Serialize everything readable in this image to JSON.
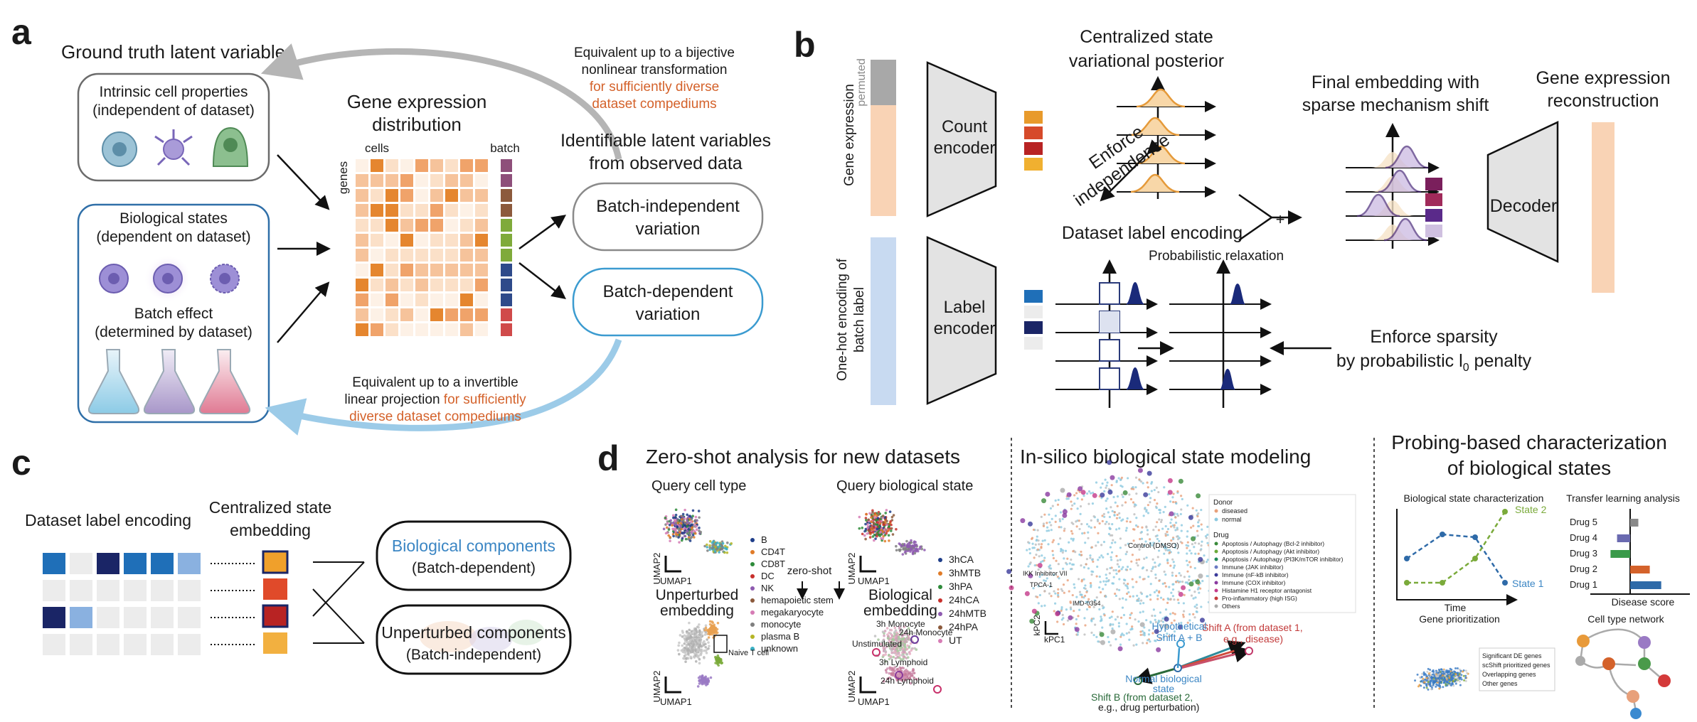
{
  "panel_a": {
    "letter": "a",
    "gt_title": "Ground truth latent variables",
    "intrinsic_line1": "Intrinsic cell properties",
    "intrinsic_line2": "(independent of dataset)",
    "bio_line1": "Biological states",
    "bio_line2": "(dependent on dataset)",
    "batch_line1": "Batch effect",
    "batch_line2": "(determined by dataset)",
    "gene_title1": "Gene expression",
    "gene_title2": "distribution",
    "cells": "cells",
    "genes": "genes",
    "batch": "batch",
    "top_eq1": "Equivalent up to a bijective",
    "top_eq2": "nonlinear transformation",
    "top_eq3": "for sufficiently diverse",
    "top_eq4": "dataset compediums",
    "ident1": "Identifiable latent variables",
    "ident2": "from observed data",
    "bi1": "Batch-independent",
    "bi2": "variation",
    "bd1": "Batch-dependent",
    "bd2": "variation",
    "bot_eq1": "Equivalent up to a invertible",
    "bot_eq2a": "linear projection ",
    "bot_eq2b": "for sufficiently",
    "bot_eq3": "diverse dataset compediums"
  },
  "panel_b": {
    "letter": "b",
    "gene_expr": "Gene expression",
    "permuted": "permuted",
    "onehot1": "One-hot encoding of",
    "onehot2": "batch label",
    "count1": "Count",
    "count2": "encoder",
    "label1": "Label",
    "label2": "encoder",
    "central1": "Centralized state",
    "central2": "variational posterior",
    "enforce1": "Enforce",
    "enforce2": "independence",
    "dataset_label": "Dataset label encoding",
    "prob_relax": "Probabilistic relaxation",
    "plus": "+",
    "final1": "Final embedding with",
    "final2": "sparse mechanism shift",
    "decoder": "Decoder",
    "recon1": "Gene expression",
    "recon2": "reconstruction",
    "sparsity1": "Enforce sparsity",
    "sparsity2": "by probabilistic l",
    "sparsity_sub": "0",
    "sparsity3": " penalty"
  },
  "panel_c": {
    "letter": "c",
    "dataset_label": "Dataset label encoding",
    "central1": "Centralized state",
    "central2": "embedding",
    "bio1": "Biological components",
    "bio2": "(Batch-dependent)",
    "unp1": "Unperturbed components",
    "unp2": "(Batch-independent)"
  },
  "panel_d": {
    "letter": "d",
    "zs_title": "Zero-shot analysis for new datasets",
    "query_cell": "Query cell type",
    "query_bio": "Query biological state",
    "zero_shot": "zero-shot",
    "unpert1": "Unperturbed",
    "unpert2": "embedding",
    "bioemb1": "Biological",
    "bioemb2": "embedding",
    "umap1": "UMAP1",
    "umap2": "UMAP2",
    "naive": "Naive T cell",
    "cell_types": [
      {
        "label": "B",
        "color": "#1f3e8a"
      },
      {
        "label": "CD4T",
        "color": "#e07b28"
      },
      {
        "label": "CD8T",
        "color": "#2e8b3a"
      },
      {
        "label": "DC",
        "color": "#c8302c"
      },
      {
        "label": "NK",
        "color": "#8e5bb0"
      },
      {
        "label": "hemapoietic stem",
        "color": "#8c5a3c"
      },
      {
        "label": "megakaryocyte",
        "color": "#d67cb5"
      },
      {
        "label": "monocyte",
        "color": "#7f7f7f"
      },
      {
        "label": "plasma B",
        "color": "#b5b526"
      },
      {
        "label": "unknown",
        "color": "#3ab0c4"
      }
    ],
    "conditions": [
      {
        "label": "3hCA",
        "color": "#1f3e8a"
      },
      {
        "label": "3hMTB",
        "color": "#e07b28"
      },
      {
        "label": "3hPA",
        "color": "#2e8b3a"
      },
      {
        "label": "24hCA",
        "color": "#c8302c"
      },
      {
        "label": "24hMTB",
        "color": "#8e5bb0"
      },
      {
        "label": "24hPA",
        "color": "#8c5a3c"
      },
      {
        "label": "UT",
        "color": "#d67cb5"
      }
    ],
    "mono3": "3h Monocyte",
    "mono24": "24h Monocyte",
    "unstim": "Unstimulated",
    "lymph3": "3h Lymphoid",
    "lymph24": "24h Lymphoid",
    "is_title": "In-silico biological state modeling",
    "control": "Control (DMSO)",
    "ikk": "IKK Inhibitor VII",
    "tpca": "TPCA-1",
    "imd": "IMD-0354",
    "kpc1": "kPC1",
    "kpc2": "kPC2",
    "donor_title": "Donor",
    "donors": [
      {
        "label": "diseased",
        "color": "#e8a07a"
      },
      {
        "label": "normal",
        "color": "#8cc9e0"
      }
    ],
    "drug_title": "Drug",
    "drugs": [
      {
        "label": "Apoptosis / Autophagy (Bcl-2 inhibitor)",
        "color": "#3a8a3a"
      },
      {
        "label": "Apoptosis / Autophagy (Akt inhibitor)",
        "color": "#6aaa3a"
      },
      {
        "label": "Apoptosis / Autophagy (PI3K/mTOR inhibitor)",
        "color": "#1f8a5a"
      },
      {
        "label": "Immune (JAK inhibitor)",
        "color": "#6a7ac4"
      },
      {
        "label": "Immune (nF-kB inhibitor)",
        "color": "#3a3a9a"
      },
      {
        "label": "Immune (COX inhibitor)",
        "color": "#8a3aa0"
      },
      {
        "label": "Histamine H1 receptor antagonist",
        "color": "#c43a8a"
      },
      {
        "label": "Pro-inflammatory (high ISG)",
        "color": "#c43a3a"
      },
      {
        "label": "Others",
        "color": "#aaaaaa"
      }
    ],
    "shiftA1": "Shift A (from dataset 1,",
    "shiftA2": "e.g., disease)",
    "hypo1": "Hypothetical",
    "hypo2": "Shift A + B",
    "normal1": "Normal biological",
    "normal2": "state",
    "shiftB1": "Shift B (from dataset 2,",
    "shiftB2": "e.g., drug perturbation)",
    "pb_title1": "Probing-based characterization",
    "pb_title2": "of biological states",
    "bsc": "Biological state characterization",
    "state1": "State 1",
    "state2": "State 2",
    "time": "Time",
    "tla": "Transfer learning analysis",
    "drug_rows": [
      "Drug 5",
      "Drug 4",
      "Drug 3",
      "Drug 2",
      "Drug 1"
    ],
    "disease_score": "Disease score",
    "gene_prio": "Gene prioritization",
    "gp_legend": [
      "Significant DE genes",
      "scShift prioritized genes",
      "Overlapping genes",
      "Other genes"
    ],
    "ctn": "Cell type network"
  },
  "colors": {
    "orange": "#d4622b",
    "blue_text": "#3b86c4",
    "arrow_gray": "#b5b5b5",
    "arrow_blue": "#9ccbe8"
  }
}
